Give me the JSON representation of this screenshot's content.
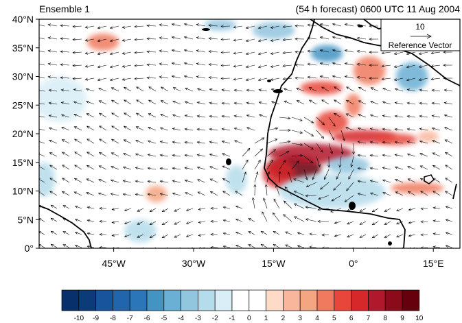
{
  "title_left": "Ensemble 1",
  "title_right": "(54 h forecast) 0600 UTC 11 Aug 2004",
  "map": {
    "lon_range": [
      -59,
      20
    ],
    "lat_range": [
      0,
      40
    ],
    "lat_ticks": [
      {
        "value": 40,
        "label": "40°N"
      },
      {
        "value": 35,
        "label": "35°N"
      },
      {
        "value": 30,
        "label": "30°N"
      },
      {
        "value": 25,
        "label": "25°N"
      },
      {
        "value": 20,
        "label": "20°N"
      },
      {
        "value": 15,
        "label": "15°N"
      },
      {
        "value": 10,
        "label": "10°N"
      },
      {
        "value": 5,
        "label": "5°N"
      },
      {
        "value": 0,
        "label": "0°"
      }
    ],
    "lon_ticks": [
      {
        "value": -45,
        "label": "45°W"
      },
      {
        "value": -30,
        "label": "30°W"
      },
      {
        "value": -15,
        "label": "15°W"
      },
      {
        "value": 0,
        "label": "0°"
      },
      {
        "value": 15,
        "label": "15°E"
      }
    ],
    "shading": [
      {
        "lon": -11,
        "lat": 14,
        "value": 10,
        "rx_deg": 5,
        "ry_deg": 2.2
      },
      {
        "lon": -8,
        "lat": 16.5,
        "value": 8,
        "rx_deg": 8,
        "ry_deg": 1.8
      },
      {
        "lon": -14,
        "lat": 13,
        "value": 7,
        "rx_deg": 3,
        "ry_deg": 2.5
      },
      {
        "lon": 2,
        "lat": 19.5,
        "value": 7,
        "rx_deg": 6,
        "ry_deg": 1.2
      },
      {
        "lon": 8,
        "lat": 19,
        "value": 6,
        "rx_deg": 4,
        "ry_deg": 1
      },
      {
        "lon": -4,
        "lat": 22,
        "value": 6,
        "rx_deg": 3,
        "ry_deg": 2
      },
      {
        "lon": 0,
        "lat": 25,
        "value": 5,
        "rx_deg": 1.5,
        "ry_deg": 2
      },
      {
        "lon": -6,
        "lat": 28,
        "value": 6,
        "rx_deg": 4,
        "ry_deg": 1.2
      },
      {
        "lon": 3,
        "lat": 31,
        "value": 5,
        "rx_deg": 3,
        "ry_deg": 2.5
      },
      {
        "lon": -47,
        "lat": 36,
        "value": 5,
        "rx_deg": 3,
        "ry_deg": 1.5
      },
      {
        "lon": -37,
        "lat": 9.5,
        "value": 4,
        "rx_deg": 2,
        "ry_deg": 1.5
      },
      {
        "lon": 12,
        "lat": 10.5,
        "value": 5,
        "rx_deg": 5,
        "ry_deg": 1
      },
      {
        "lon": 14,
        "lat": 19.5,
        "value": 3,
        "rx_deg": 2,
        "ry_deg": 1
      },
      {
        "lon": -15,
        "lat": 38,
        "value": -3,
        "rx_deg": 4,
        "ry_deg": 1.5
      },
      {
        "lon": -25,
        "lat": 39,
        "value": -3,
        "rx_deg": 3,
        "ry_deg": 1
      },
      {
        "lon": -5,
        "lat": 34,
        "value": -5,
        "rx_deg": 3,
        "ry_deg": 1.5
      },
      {
        "lon": 11,
        "lat": 30,
        "value": -4,
        "rx_deg": 3,
        "ry_deg": 2.5
      },
      {
        "lon": -4,
        "lat": 10,
        "value": -2,
        "rx_deg": 10,
        "ry_deg": 3
      },
      {
        "lon": -1,
        "lat": 14.5,
        "value": -3,
        "rx_deg": 4,
        "ry_deg": 1.5
      },
      {
        "lon": -58,
        "lat": 12,
        "value": -2,
        "rx_deg": 2,
        "ry_deg": 3
      },
      {
        "lon": -40,
        "lat": 3,
        "value": -2,
        "rx_deg": 3,
        "ry_deg": 2
      },
      {
        "lon": -22,
        "lat": 12,
        "value": -2,
        "rx_deg": 2,
        "ry_deg": 2.5
      },
      {
        "lon": -55,
        "lat": 26,
        "value": -1,
        "rx_deg": 5,
        "ry_deg": 4
      }
    ]
  },
  "reference_vector": {
    "magnitude": "10",
    "label": "Reference Vector"
  },
  "colorbar": {
    "labels": [
      "-10",
      "-9",
      "-8",
      "-7",
      "-6",
      "-5",
      "-4",
      "-3",
      "-2",
      "-1",
      "0",
      "1",
      "2",
      "3",
      "4",
      "5",
      "6",
      "7",
      "8",
      "9",
      "10"
    ],
    "colors": [
      "#08306b",
      "#0c3b7a",
      "#17549b",
      "#2166ac",
      "#2b76b9",
      "#4393c3",
      "#6aafd4",
      "#92c5de",
      "#b5dcea",
      "#d9eef6",
      "#ffffff",
      "#ffffff",
      "#fddbc7",
      "#f9b69c",
      "#f4a582",
      "#ef7a5e",
      "#e7473b",
      "#d6282b",
      "#b2182b",
      "#8a0c1a",
      "#67000d"
    ]
  }
}
